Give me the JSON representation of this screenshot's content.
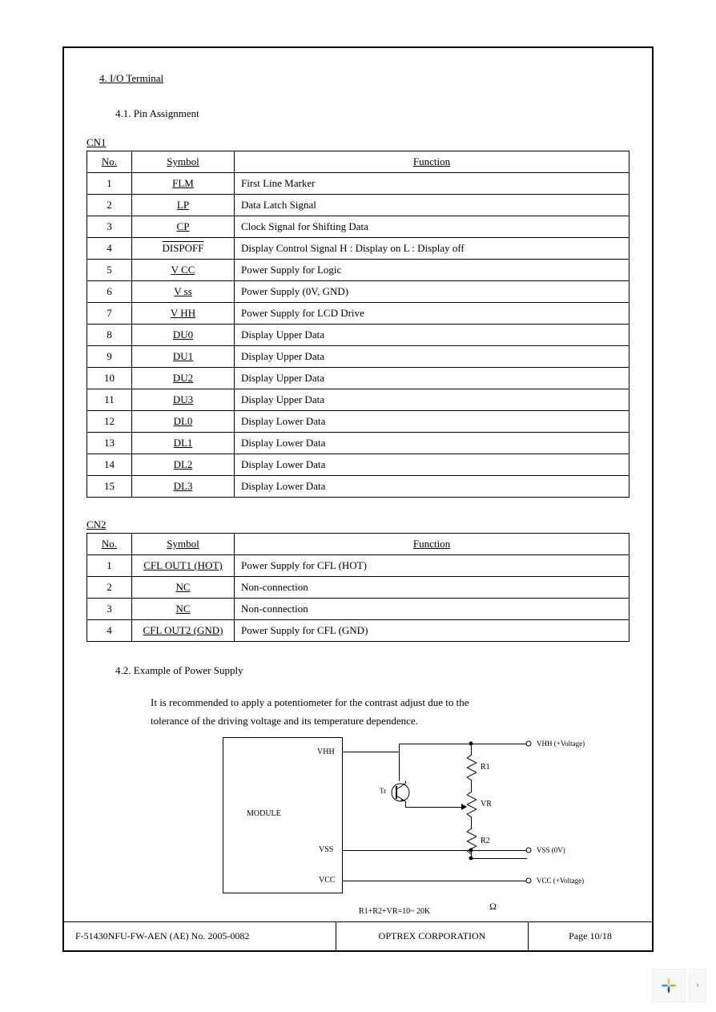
{
  "section": {
    "title": "4.  I/O  Terminal",
    "sub1": "4.1. Pin Assignment",
    "sub2": "4.2. Example of Power Supply",
    "recommend_line1": "It is recommended to apply a potentiometer for the contrast adjust due to the",
    "recommend_line2": "tolerance of the driving voltage and its temperature dependence."
  },
  "tables": {
    "cn1": {
      "label": "CN1",
      "headers": {
        "no": "No.",
        "symbol": "Symbol",
        "function": "Function"
      },
      "rows": [
        {
          "no": "1",
          "symbol": "FLM",
          "overline": false,
          "function": "First Line Marker"
        },
        {
          "no": "2",
          "symbol": "LP",
          "overline": false,
          "function": "Data Latch Signal"
        },
        {
          "no": "3",
          "symbol": "CP",
          "overline": false,
          "function": "Clock Signal for Shifting Data"
        },
        {
          "no": "4",
          "symbol": "DISPOFF",
          "overline": true,
          "function": "Display Control Signal  H : Display on  L : Display off"
        },
        {
          "no": "5",
          "symbol": "V CC",
          "overline": false,
          "function": "Power Supply for Logic"
        },
        {
          "no": "6",
          "symbol": "V ss",
          "overline": false,
          "function": "Power Supply (0V, GND)"
        },
        {
          "no": "7",
          "symbol": "V HH",
          "overline": false,
          "function": "Power Supply for LCD Drive"
        },
        {
          "no": "8",
          "symbol": "DU0",
          "overline": false,
          "function": "Display Upper Data"
        },
        {
          "no": "9",
          "symbol": "DU1",
          "overline": false,
          "function": "Display Upper Data"
        },
        {
          "no": "10",
          "symbol": "DU2",
          "overline": false,
          "function": "Display Upper Data"
        },
        {
          "no": "11",
          "symbol": "DU3",
          "overline": false,
          "function": "Display Upper Data"
        },
        {
          "no": "12",
          "symbol": "DL0",
          "overline": false,
          "function": "Display Lower Data"
        },
        {
          "no": "13",
          "symbol": "DL1",
          "overline": false,
          "function": "Display Lower Data"
        },
        {
          "no": "14",
          "symbol": "DL2",
          "overline": false,
          "function": "Display Lower Data"
        },
        {
          "no": "15",
          "symbol": "DL3",
          "overline": false,
          "function": "Display Lower Data"
        }
      ]
    },
    "cn2": {
      "label": "CN2",
      "headers": {
        "no": "No.",
        "symbol": "Symbol",
        "function": "Function"
      },
      "rows": [
        {
          "no": "1",
          "symbol": "CFL OUT1 (HOT)",
          "function": "Power Supply for CFL (HOT)"
        },
        {
          "no": "2",
          "symbol": "NC",
          "function": "Non-connection"
        },
        {
          "no": "3",
          "symbol": "NC",
          "function": "Non-connection"
        },
        {
          "no": "4",
          "symbol": "CFL OUT2 (GND)",
          "function": "Power Supply for CFL (GND)"
        }
      ]
    }
  },
  "diagram": {
    "module": "MODULE",
    "pins": {
      "vhh": "VHH",
      "vss": "VSS",
      "vcc": "VCC"
    },
    "components": {
      "r1": "R1",
      "vr": "VR",
      "r2": "R2",
      "tr": "Tr"
    },
    "terminals": {
      "vhh": "VHH (+Voltage)",
      "vss": "VSS (0V)",
      "vcc": "VCC (+Voltage)"
    },
    "equation": "R1+R2+VR=10~ 20K",
    "ohm": "Ω"
  },
  "footer": {
    "left": "F-51430NFU-FW-AEN (AE) No. 2005-0082",
    "center": "OPTREX CORPORATION",
    "right": "Page 10/18"
  },
  "colors": {
    "text": "#000000",
    "border": "#000000",
    "background": "#ffffff",
    "widget_bg": "#f7f7f7"
  }
}
